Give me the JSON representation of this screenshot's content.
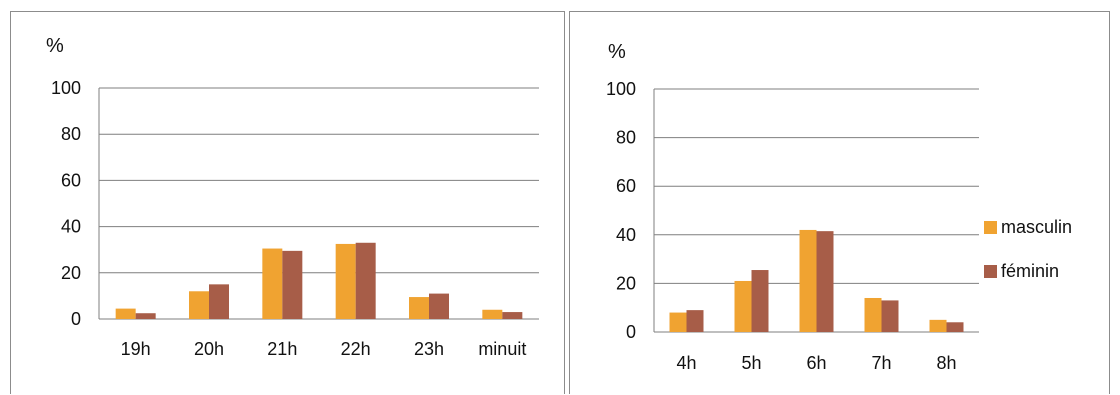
{
  "chart_data": [
    {
      "type": "bar",
      "ylabel": "%",
      "ylim": [
        0,
        100
      ],
      "yticks": [
        "0",
        "20",
        "40",
        "60",
        "80",
        "100"
      ],
      "categories": [
        "19h",
        "20h",
        "21h",
        "22h",
        "23h",
        "minuit"
      ],
      "series": [
        {
          "values": [
            4.5,
            12,
            30.5,
            32.5,
            9.5,
            4
          ]
        },
        {
          "values": [
            2.5,
            15,
            29.5,
            33,
            11,
            3
          ]
        }
      ],
      "grid": true,
      "legend": false
    },
    {
      "type": "bar",
      "ylabel": "%",
      "ylim": [
        0,
        100
      ],
      "yticks": [
        "0",
        "20",
        "40",
        "60",
        "80",
        "100"
      ],
      "categories": [
        "4h",
        "5h",
        "6h",
        "7h",
        "8h"
      ],
      "series": [
        {
          "name": "masculin",
          "values": [
            8,
            21,
            42,
            14,
            5
          ]
        },
        {
          "name": "féminin",
          "values": [
            9,
            25.5,
            41.5,
            13,
            4
          ]
        }
      ],
      "grid": true,
      "legend": "right"
    }
  ],
  "colors": {
    "masculin": "#f0a331",
    "feminin": "#a75d48",
    "grid": "#7f7f7f",
    "axis": "#7f7f7f"
  }
}
